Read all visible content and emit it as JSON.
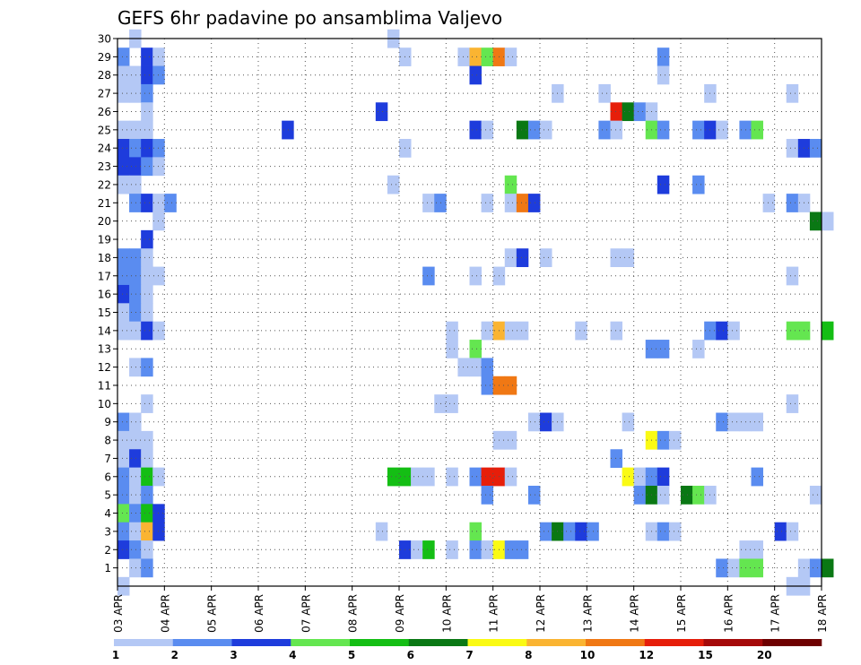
{
  "chart_data": {
    "type": "heatmap",
    "title": "GEFS 6hr padavine po ansamblima Valjevo",
    "xlabel": "",
    "ylabel": "",
    "x_tick_labels": [
      "03 APR",
      "04 APR",
      "05 APR",
      "06 APR",
      "07 APR",
      "08 APR",
      "09 APR",
      "10 APR",
      "11 APR",
      "12 APR",
      "13 APR",
      "14 APR",
      "15 APR",
      "16 APR",
      "17 APR",
      "18 APR"
    ],
    "y_tick_labels": [
      "1",
      "2",
      "3",
      "4",
      "5",
      "6",
      "7",
      "8",
      "9",
      "10",
      "11",
      "12",
      "13",
      "14",
      "15",
      "16",
      "17",
      "18",
      "19",
      "20",
      "21",
      "22",
      "23",
      "24",
      "25",
      "26",
      "27",
      "28",
      "29",
      "30"
    ],
    "x_unit": "6-hour step from 03 APR 00z",
    "x_range": [
      0,
      60
    ],
    "y_range": [
      0,
      30
    ],
    "grid": true,
    "legend": {
      "position": "bottom",
      "labels": [
        "1",
        "2",
        "3",
        "4",
        "5",
        "6",
        "7",
        "8",
        "10",
        "12",
        "15",
        "20"
      ],
      "colors": [
        "#b4c8f5",
        "#5a8cf0",
        "#1e3cdc",
        "#64e650",
        "#14be14",
        "#0a7814",
        "#fafa14",
        "#fab432",
        "#f07814",
        "#e61e0a",
        "#a50a0a",
        "#6e0000"
      ]
    },
    "cell_columns": [
      "member",
      "step",
      "class"
    ],
    "cells": [
      [
        30,
        1,
        1
      ],
      [
        30,
        23,
        1
      ],
      [
        29,
        0,
        2
      ],
      [
        29,
        2,
        3
      ],
      [
        29,
        3,
        1
      ],
      [
        29,
        24,
        1
      ],
      [
        29,
        29,
        1
      ],
      [
        29,
        30,
        8
      ],
      [
        29,
        31,
        4
      ],
      [
        29,
        32,
        9
      ],
      [
        29,
        33,
        1
      ],
      [
        29,
        46,
        2
      ],
      [
        28,
        0,
        1
      ],
      [
        28,
        1,
        1
      ],
      [
        28,
        2,
        3
      ],
      [
        28,
        3,
        2
      ],
      [
        28,
        30,
        3
      ],
      [
        28,
        46,
        1
      ],
      [
        27,
        0,
        1
      ],
      [
        27,
        1,
        1
      ],
      [
        27,
        2,
        2
      ],
      [
        27,
        37,
        1
      ],
      [
        27,
        41,
        1
      ],
      [
        27,
        50,
        1
      ],
      [
        27,
        57,
        1
      ],
      [
        26,
        2,
        1
      ],
      [
        26,
        22,
        3
      ],
      [
        26,
        42,
        10
      ],
      [
        26,
        43,
        6
      ],
      [
        26,
        44,
        2
      ],
      [
        26,
        45,
        1
      ],
      [
        25,
        0,
        1
      ],
      [
        25,
        1,
        1
      ],
      [
        25,
        2,
        1
      ],
      [
        25,
        14,
        3
      ],
      [
        25,
        30,
        3
      ],
      [
        25,
        31,
        1
      ],
      [
        25,
        34,
        6
      ],
      [
        25,
        35,
        2
      ],
      [
        25,
        36,
        1
      ],
      [
        25,
        41,
        2
      ],
      [
        25,
        42,
        1
      ],
      [
        25,
        45,
        4
      ],
      [
        25,
        46,
        2
      ],
      [
        25,
        49,
        2
      ],
      [
        25,
        50,
        3
      ],
      [
        25,
        51,
        1
      ],
      [
        25,
        53,
        2
      ],
      [
        25,
        54,
        4
      ],
      [
        24,
        0,
        3
      ],
      [
        24,
        1,
        2
      ],
      [
        24,
        2,
        3
      ],
      [
        24,
        3,
        2
      ],
      [
        24,
        24,
        1
      ],
      [
        24,
        57,
        1
      ],
      [
        24,
        58,
        3
      ],
      [
        24,
        59,
        2
      ],
      [
        23,
        0,
        3
      ],
      [
        23,
        1,
        3
      ],
      [
        23,
        2,
        2
      ],
      [
        23,
        3,
        1
      ],
      [
        22,
        0,
        1
      ],
      [
        22,
        1,
        1
      ],
      [
        22,
        23,
        1
      ],
      [
        22,
        33,
        4
      ],
      [
        22,
        46,
        3
      ],
      [
        22,
        49,
        2
      ],
      [
        21,
        1,
        2
      ],
      [
        21,
        2,
        3
      ],
      [
        21,
        3,
        1
      ],
      [
        21,
        4,
        2
      ],
      [
        21,
        26,
        1
      ],
      [
        21,
        27,
        2
      ],
      [
        21,
        31,
        1
      ],
      [
        21,
        33,
        1
      ],
      [
        21,
        34,
        9
      ],
      [
        21,
        35,
        3
      ],
      [
        21,
        55,
        1
      ],
      [
        21,
        57,
        2
      ],
      [
        21,
        58,
        1
      ],
      [
        20,
        3,
        1
      ],
      [
        20,
        59,
        6
      ],
      [
        20,
        60,
        1
      ],
      [
        19,
        2,
        3
      ],
      [
        18,
        0,
        2
      ],
      [
        18,
        1,
        2
      ],
      [
        18,
        2,
        1
      ],
      [
        18,
        33,
        1
      ],
      [
        18,
        34,
        3
      ],
      [
        18,
        36,
        1
      ],
      [
        18,
        42,
        1
      ],
      [
        18,
        43,
        1
      ],
      [
        17,
        0,
        2
      ],
      [
        17,
        1,
        2
      ],
      [
        17,
        2,
        1
      ],
      [
        17,
        3,
        1
      ],
      [
        17,
        26,
        2
      ],
      [
        17,
        30,
        1
      ],
      [
        17,
        32,
        1
      ],
      [
        17,
        57,
        1
      ],
      [
        16,
        0,
        3
      ],
      [
        16,
        1,
        2
      ],
      [
        16,
        2,
        1
      ],
      [
        15,
        0,
        1
      ],
      [
        15,
        1,
        2
      ],
      [
        15,
        2,
        1
      ],
      [
        14,
        0,
        1
      ],
      [
        14,
        1,
        1
      ],
      [
        14,
        2,
        3
      ],
      [
        14,
        3,
        1
      ],
      [
        14,
        28,
        1
      ],
      [
        14,
        31,
        1
      ],
      [
        14,
        32,
        8
      ],
      [
        14,
        33,
        1
      ],
      [
        14,
        34,
        1
      ],
      [
        14,
        39,
        1
      ],
      [
        14,
        42,
        1
      ],
      [
        14,
        50,
        2
      ],
      [
        14,
        51,
        3
      ],
      [
        14,
        52,
        1
      ],
      [
        14,
        57,
        4
      ],
      [
        14,
        58,
        4
      ],
      [
        14,
        60,
        5
      ],
      [
        13,
        28,
        1
      ],
      [
        13,
        30,
        4
      ],
      [
        13,
        45,
        2
      ],
      [
        13,
        46,
        2
      ],
      [
        13,
        49,
        1
      ],
      [
        12,
        1,
        1
      ],
      [
        12,
        2,
        2
      ],
      [
        12,
        29,
        1
      ],
      [
        12,
        30,
        1
      ],
      [
        12,
        31,
        2
      ],
      [
        11,
        31,
        2
      ],
      [
        11,
        32,
        9
      ],
      [
        11,
        33,
        9
      ],
      [
        10,
        2,
        1
      ],
      [
        10,
        27,
        1
      ],
      [
        10,
        28,
        1
      ],
      [
        10,
        57,
        1
      ],
      [
        9,
        0,
        2
      ],
      [
        9,
        1,
        1
      ],
      [
        9,
        35,
        1
      ],
      [
        9,
        36,
        3
      ],
      [
        9,
        37,
        1
      ],
      [
        9,
        43,
        1
      ],
      [
        9,
        51,
        2
      ],
      [
        9,
        52,
        1
      ],
      [
        9,
        53,
        1
      ],
      [
        9,
        54,
        1
      ],
      [
        8,
        0,
        1
      ],
      [
        8,
        1,
        1
      ],
      [
        8,
        2,
        1
      ],
      [
        8,
        32,
        1
      ],
      [
        8,
        33,
        1
      ],
      [
        8,
        45,
        7
      ],
      [
        8,
        46,
        2
      ],
      [
        8,
        47,
        1
      ],
      [
        7,
        0,
        1
      ],
      [
        7,
        1,
        3
      ],
      [
        7,
        2,
        1
      ],
      [
        7,
        42,
        2
      ],
      [
        6,
        0,
        2
      ],
      [
        6,
        1,
        1
      ],
      [
        6,
        2,
        5
      ],
      [
        6,
        3,
        1
      ],
      [
        6,
        23,
        5
      ],
      [
        6,
        24,
        5
      ],
      [
        6,
        25,
        1
      ],
      [
        6,
        26,
        1
      ],
      [
        6,
        28,
        1
      ],
      [
        6,
        30,
        2
      ],
      [
        6,
        31,
        10
      ],
      [
        6,
        32,
        10
      ],
      [
        6,
        33,
        1
      ],
      [
        6,
        43,
        7
      ],
      [
        6,
        44,
        1
      ],
      [
        6,
        45,
        2
      ],
      [
        6,
        46,
        3
      ],
      [
        6,
        54,
        2
      ],
      [
        5,
        0,
        2
      ],
      [
        5,
        1,
        1
      ],
      [
        5,
        2,
        2
      ],
      [
        5,
        31,
        2
      ],
      [
        5,
        35,
        2
      ],
      [
        5,
        44,
        2
      ],
      [
        5,
        45,
        6
      ],
      [
        5,
        46,
        1
      ],
      [
        5,
        48,
        6
      ],
      [
        5,
        49,
        4
      ],
      [
        5,
        50,
        1
      ],
      [
        5,
        59,
        1
      ],
      [
        4,
        0,
        4
      ],
      [
        4,
        1,
        2
      ],
      [
        4,
        2,
        5
      ],
      [
        4,
        3,
        3
      ],
      [
        3,
        0,
        2
      ],
      [
        3,
        1,
        1
      ],
      [
        3,
        2,
        8
      ],
      [
        3,
        3,
        3
      ],
      [
        3,
        22,
        1
      ],
      [
        3,
        30,
        4
      ],
      [
        3,
        36,
        2
      ],
      [
        3,
        37,
        6
      ],
      [
        3,
        38,
        2
      ],
      [
        3,
        39,
        3
      ],
      [
        3,
        40,
        2
      ],
      [
        3,
        45,
        1
      ],
      [
        3,
        46,
        2
      ],
      [
        3,
        47,
        1
      ],
      [
        3,
        56,
        3
      ],
      [
        3,
        57,
        1
      ],
      [
        2,
        0,
        3
      ],
      [
        2,
        1,
        2
      ],
      [
        2,
        2,
        1
      ],
      [
        2,
        24,
        3
      ],
      [
        2,
        25,
        1
      ],
      [
        2,
        26,
        5
      ],
      [
        2,
        28,
        1
      ],
      [
        2,
        30,
        2
      ],
      [
        2,
        31,
        1
      ],
      [
        2,
        32,
        7
      ],
      [
        2,
        33,
        2
      ],
      [
        2,
        34,
        2
      ],
      [
        2,
        53,
        1
      ],
      [
        2,
        54,
        1
      ],
      [
        1,
        1,
        1
      ],
      [
        1,
        2,
        2
      ],
      [
        1,
        51,
        2
      ],
      [
        1,
        52,
        1
      ],
      [
        1,
        53,
        4
      ],
      [
        1,
        54,
        4
      ],
      [
        1,
        58,
        1
      ],
      [
        1,
        59,
        2
      ],
      [
        1,
        60,
        6
      ],
      [
        0,
        0,
        1
      ],
      [
        0,
        57,
        1
      ],
      [
        0,
        58,
        1
      ]
    ]
  }
}
